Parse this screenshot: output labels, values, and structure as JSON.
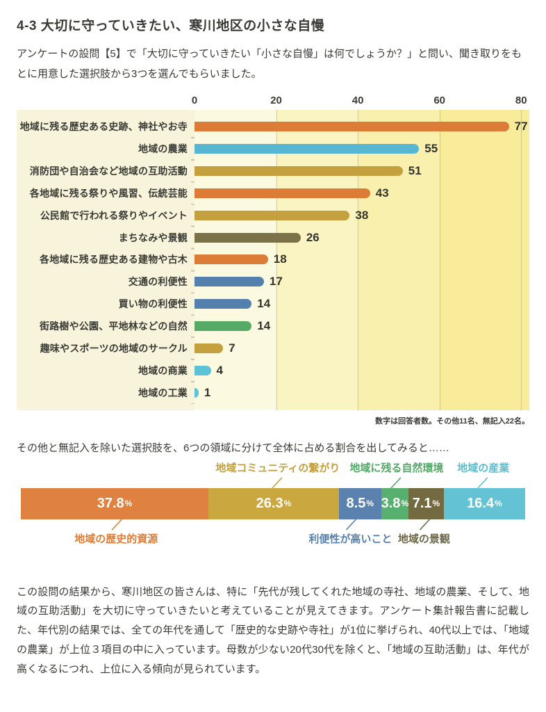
{
  "page": {
    "title": "4-3 大切に守っていきたい、寒川地区の小さな自慢",
    "intro": "アンケートの設問【5】で「大切に守っていきたい「小さな自慢」は何でしょうか？」と問い、聞き取りをもとに用意した選択肢から3つを選んでもらいました。",
    "transition": "その他と無記入を除いた選択肢を、6つの領域に分けて全体に占める割合を出してみると……",
    "conclusion": "この設問の結果から、寒川地区の皆さんは、特に「先代が残してくれた地域の寺社、地域の農業、そして、地域の互助活動」を大切に守っていきたいと考えていることが見えてきます。アンケート集計報告書に記載した、年代別の結果では、全ての年代を通して「歴史的な史跡や寺社」が1位に挙げられ、40代以上では、「地域の農業」が上位３項目の中に入っています。母数が少ない20代30代を除くと、「地域の互助活動」は、年代が高くなるにつれ、上位に入る傾向が見られています。"
  },
  "chart_data": [
    {
      "type": "bar",
      "orientation": "horizontal",
      "title": "",
      "categories": [
        "地域に残る歴史ある史跡、神社やお寺",
        "地域の農業",
        "消防団や自治会など地域の互助活動",
        "各地域に残る祭りや風習、伝統芸能",
        "公民館で行われる祭りやイベント",
        "まちなみや景観",
        "各地域に残る歴史ある建物や古木",
        "交通の利便性",
        "買い物の利便性",
        "街路樹や公園、平地林などの自然",
        "趣味やスポーツの地域のサークル",
        "地域の商業",
        "地域の工業"
      ],
      "values": [
        77,
        55,
        51,
        43,
        38,
        26,
        18,
        17,
        14,
        14,
        7,
        4,
        1
      ],
      "colors": [
        "#dc7c37",
        "#57b6d2",
        "#c5a03f",
        "#dc7c37",
        "#c5a03f",
        "#7b7249",
        "#dc7c37",
        "#5480ae",
        "#5480ae",
        "#55aa65",
        "#c5a03f",
        "#5cc2d6",
        "#5cc2d6"
      ],
      "ticks": [
        0,
        20,
        40,
        60,
        80
      ],
      "xlim": [
        0,
        82
      ],
      "grid": true,
      "band_colors": [
        "#fcf9e1",
        "#faf4c3",
        "#f9f0ad",
        "#f8ec9b"
      ],
      "label_panel_color": "#f8f4dc",
      "note": "数字は回答者数。その他11名、無記入22名。"
    },
    {
      "type": "bar",
      "subtype": "stacked-horizontal",
      "unit": "%",
      "total": 100,
      "segments": [
        {
          "label": "地域の歴史的資源",
          "value": 37.8,
          "color": "#df8140",
          "label_color": "#e07b36",
          "label_side": "below"
        },
        {
          "label": "地域コミュニティの繋がり",
          "value": 26.3,
          "color": "#cba73f",
          "label_color": "#c5a03f",
          "label_side": "above"
        },
        {
          "label": "利便性が高いこと",
          "value": 8.5,
          "color": "#5b81ae",
          "label_color": "#5580af",
          "label_side": "below"
        },
        {
          "label": "地域に残る自然環境",
          "value": 3.8,
          "color": "#58b06e",
          "label_color": "#53a966",
          "label_side": "above"
        },
        {
          "label": "地域の景観",
          "value": 7.1,
          "color": "#746a41",
          "label_color": "#6d6747",
          "label_side": "below"
        },
        {
          "label": "地域の産業",
          "value": 16.4,
          "color": "#63c3d4",
          "label_color": "#5bbdd2",
          "label_side": "above"
        }
      ]
    }
  ]
}
